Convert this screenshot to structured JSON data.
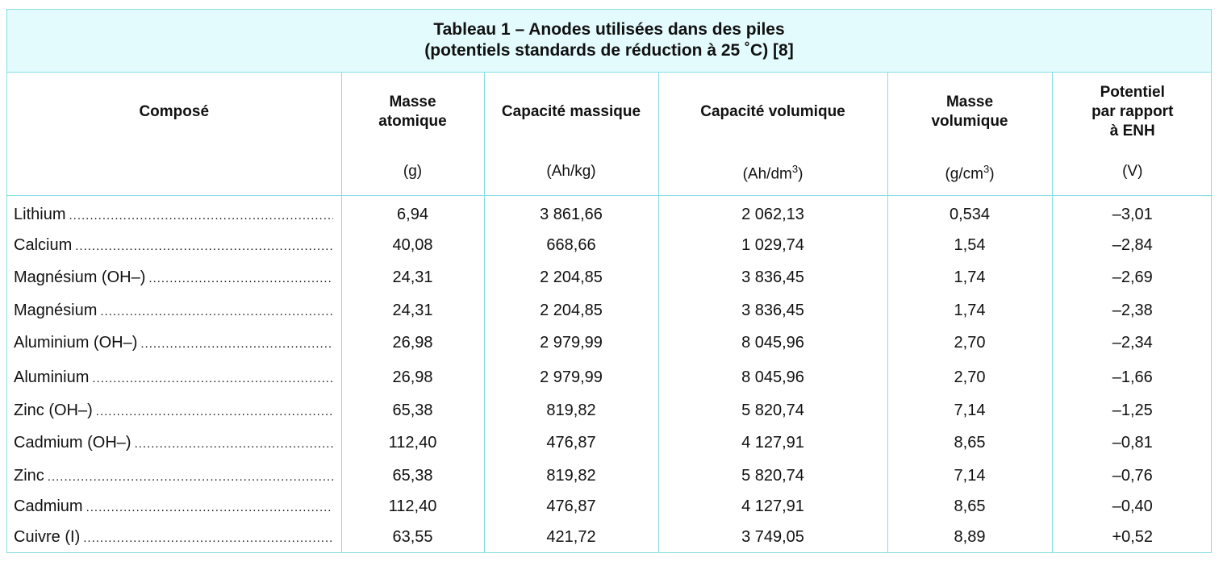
{
  "title": {
    "line1": "Tableau 1 – Anodes utilisées dans des piles",
    "line2": "(potentiels standards de réduction à 25 ˚C) [8]"
  },
  "headers": [
    {
      "label_lines": [
        "Composé"
      ],
      "unit": ""
    },
    {
      "label_lines": [
        "Masse",
        "atomique"
      ],
      "unit": "(g)"
    },
    {
      "label_lines": [
        "Capacité massique"
      ],
      "unit": "(Ah/kg)"
    },
    {
      "label_lines": [
        "Capacité volumique"
      ],
      "unit": "(Ah/dm",
      "unit_sup": "3",
      "unit_end": ")"
    },
    {
      "label_lines": [
        "Masse",
        "volumique"
      ],
      "unit": "(g/cm",
      "unit_sup": "3",
      "unit_end": ")"
    },
    {
      "label_lines": [
        "Potentiel",
        "par rapport",
        "à ENH"
      ],
      "unit": "(V)"
    }
  ],
  "rows": [
    {
      "compose": "Lithium",
      "masse_atomique": "6,94",
      "capacite_massique": "3 861,66",
      "capacite_volumique": "2 062,13",
      "masse_volumique": "0,534",
      "potentiel": "–3,01"
    },
    {
      "compose": "Calcium",
      "masse_atomique": "40,08",
      "capacite_massique": "668,66",
      "capacite_volumique": "1 029,74",
      "masse_volumique": "1,54",
      "potentiel": "–2,84"
    },
    {
      "compose": "Magnésium (OH–)",
      "masse_atomique": "24,31",
      "capacite_massique": "2 204,85",
      "capacite_volumique": "3 836,45",
      "masse_volumique": "1,74",
      "potentiel": "–2,69"
    },
    {
      "compose": "Magnésium",
      "masse_atomique": "24,31",
      "capacite_massique": "2 204,85",
      "capacite_volumique": "3 836,45",
      "masse_volumique": "1,74",
      "potentiel": "–2,38"
    },
    {
      "compose": "Aluminium (OH–)",
      "masse_atomique": "26,98",
      "capacite_massique": "2 979,99",
      "capacite_volumique": "8 045,96",
      "masse_volumique": "2,70",
      "potentiel": "–2,34"
    },
    {
      "compose": "Aluminium",
      "masse_atomique": "26,98",
      "capacite_massique": "2 979,99",
      "capacite_volumique": "8 045,96",
      "masse_volumique": "2,70",
      "potentiel": "–1,66"
    },
    {
      "compose": "Zinc (OH–)",
      "masse_atomique": "65,38",
      "capacite_massique": "819,82",
      "capacite_volumique": "5 820,74",
      "masse_volumique": "7,14",
      "potentiel": "–1,25"
    },
    {
      "compose": "Cadmium (OH–)",
      "masse_atomique": "112,40",
      "capacite_massique": "476,87",
      "capacite_volumique": "4 127,91",
      "masse_volumique": "8,65",
      "potentiel": "–0,81"
    },
    {
      "compose": "Zinc",
      "masse_atomique": "65,38",
      "capacite_massique": "819,82",
      "capacite_volumique": "5 820,74",
      "masse_volumique": "7,14",
      "potentiel": "–0,76"
    },
    {
      "compose": "Cadmium",
      "masse_atomique": "112,40",
      "capacite_massique": "476,87",
      "capacite_volumique": "4 127,91",
      "masse_volumique": "8,65",
      "potentiel": "–0,40"
    },
    {
      "compose": "Cuivre (I)",
      "masse_atomique": "63,55",
      "capacite_massique": "421,72",
      "capacite_volumique": "3 749,05",
      "masse_volumique": "8,89",
      "potentiel": "+0,52"
    }
  ],
  "colors": {
    "border": "#86dde5",
    "title_background": "#e3fbfd",
    "text": "#111111"
  }
}
